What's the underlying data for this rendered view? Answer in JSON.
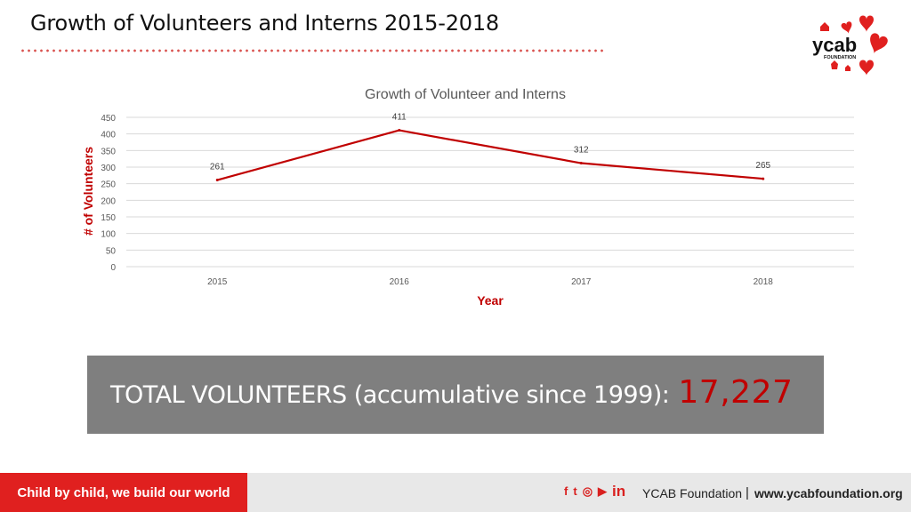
{
  "slide": {
    "title": "Growth of Volunteers and Interns 2015-2018"
  },
  "logo": {
    "text": "ycab",
    "subtext": "FOUNDATION"
  },
  "chart_data": {
    "type": "line",
    "title": "Growth of Volunteer and Interns",
    "xlabel": "Year",
    "ylabel": "# of Volunteers",
    "categories": [
      "2015",
      "2016",
      "2017",
      "2018"
    ],
    "values": [
      261,
      411,
      312,
      265
    ],
    "data_labels": [
      "261",
      "411",
      "312",
      "265"
    ],
    "ylim": [
      0,
      450
    ],
    "yticks": [
      "0",
      "50",
      "100",
      "150",
      "200",
      "250",
      "300",
      "350",
      "400",
      "450"
    ],
    "grid": true,
    "line_color": "#c00000"
  },
  "banner": {
    "label": "TOTAL VOLUNTEERS (accumulative since 1999):",
    "value": "17,227"
  },
  "footer": {
    "tagline": "Child by child, we build our world",
    "social_icons": [
      "facebook-icon",
      "twitter-icon",
      "instagram-icon",
      "youtube-icon",
      "linkedin-icon"
    ],
    "social_glyphs": [
      "f",
      "t",
      "◎",
      "▶",
      "in"
    ],
    "org": "YCAB Foundation",
    "separator": "|",
    "url": "www.ycabfoundation.org"
  },
  "colors": {
    "accent_red": "#e0201f",
    "series_red": "#c00000",
    "banner_gray": "#7f7f7f",
    "footer_gray": "#e8e8e8"
  }
}
